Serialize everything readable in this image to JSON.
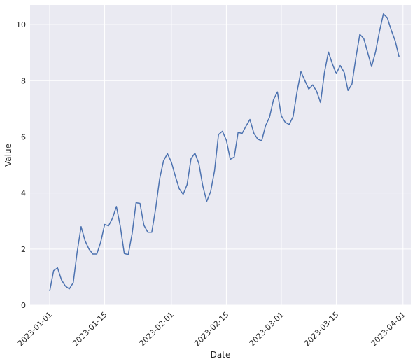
{
  "chart_data": {
    "type": "line",
    "title": "",
    "xlabel": "Date",
    "ylabel": "Value",
    "grid": true,
    "xlim": [
      "2022-12-27",
      "2023-04-03"
    ],
    "ylim": [
      0,
      10.7
    ],
    "x_ticks": [
      "2023-01-01",
      "2023-01-15",
      "2023-02-01",
      "2023-02-15",
      "2023-03-01",
      "2023-03-15",
      "2023-04-01"
    ],
    "y_ticks": [
      0,
      2,
      4,
      6,
      8,
      10
    ],
    "colors": {
      "line": "#4c72b0",
      "background": "#eaeaf2",
      "grid": "#ffffff"
    },
    "series": [
      {
        "x": [
          "2023-01-01",
          "2023-01-02",
          "2023-01-03",
          "2023-01-04",
          "2023-01-05",
          "2023-01-06",
          "2023-01-07",
          "2023-01-08",
          "2023-01-09",
          "2023-01-10",
          "2023-01-11",
          "2023-01-12",
          "2023-01-13",
          "2023-01-14",
          "2023-01-15",
          "2023-01-16",
          "2023-01-17",
          "2023-01-18",
          "2023-01-19",
          "2023-01-20",
          "2023-01-21",
          "2023-01-22",
          "2023-01-23",
          "2023-01-24",
          "2023-01-25",
          "2023-01-26",
          "2023-01-27",
          "2023-01-28",
          "2023-01-29",
          "2023-01-30",
          "2023-01-31",
          "2023-02-01",
          "2023-02-02",
          "2023-02-03",
          "2023-02-04",
          "2023-02-05",
          "2023-02-06",
          "2023-02-07",
          "2023-02-08",
          "2023-02-09",
          "2023-02-10",
          "2023-02-11",
          "2023-02-12",
          "2023-02-13",
          "2023-02-14",
          "2023-02-15",
          "2023-02-16",
          "2023-02-17",
          "2023-02-18",
          "2023-02-19",
          "2023-02-20",
          "2023-02-21",
          "2023-02-22",
          "2023-02-23",
          "2023-02-24",
          "2023-02-25",
          "2023-02-26",
          "2023-02-27",
          "2023-02-28",
          "2023-03-01",
          "2023-03-02",
          "2023-03-03",
          "2023-03-04",
          "2023-03-05",
          "2023-03-06",
          "2023-03-07",
          "2023-03-08",
          "2023-03-09",
          "2023-03-10",
          "2023-03-11",
          "2023-03-12",
          "2023-03-13",
          "2023-03-14",
          "2023-03-15",
          "2023-03-16",
          "2023-03-17",
          "2023-03-18",
          "2023-03-19",
          "2023-03-20",
          "2023-03-21",
          "2023-03-22",
          "2023-03-23",
          "2023-03-24",
          "2023-03-25",
          "2023-03-26",
          "2023-03-27",
          "2023-03-28",
          "2023-03-29",
          "2023-03-30",
          "2023-03-31"
        ],
        "values": [
          0.5,
          1.23,
          1.33,
          0.9,
          0.68,
          0.58,
          0.8,
          1.9,
          2.8,
          2.3,
          2.0,
          1.82,
          1.82,
          2.25,
          2.88,
          2.83,
          3.1,
          3.52,
          2.8,
          1.84,
          1.8,
          2.55,
          3.65,
          3.63,
          2.85,
          2.6,
          2.6,
          3.45,
          4.5,
          5.15,
          5.4,
          5.1,
          4.6,
          4.15,
          3.95,
          4.3,
          5.22,
          5.42,
          5.05,
          4.25,
          3.7,
          4.05,
          4.8,
          6.08,
          6.2,
          5.88,
          5.2,
          5.28,
          6.16,
          6.12,
          6.38,
          6.62,
          6.13,
          5.92,
          5.86,
          6.4,
          6.7,
          7.32,
          7.6,
          6.75,
          6.52,
          6.44,
          6.72,
          7.6,
          8.32,
          8.0,
          7.7,
          7.85,
          7.62,
          7.22,
          8.3,
          9.02,
          8.6,
          8.25,
          8.54,
          8.3,
          7.65,
          7.88,
          8.82,
          9.65,
          9.5,
          9.0,
          8.5,
          9.02,
          9.75,
          10.38,
          10.24,
          9.8,
          9.42,
          8.85
        ]
      }
    ]
  }
}
